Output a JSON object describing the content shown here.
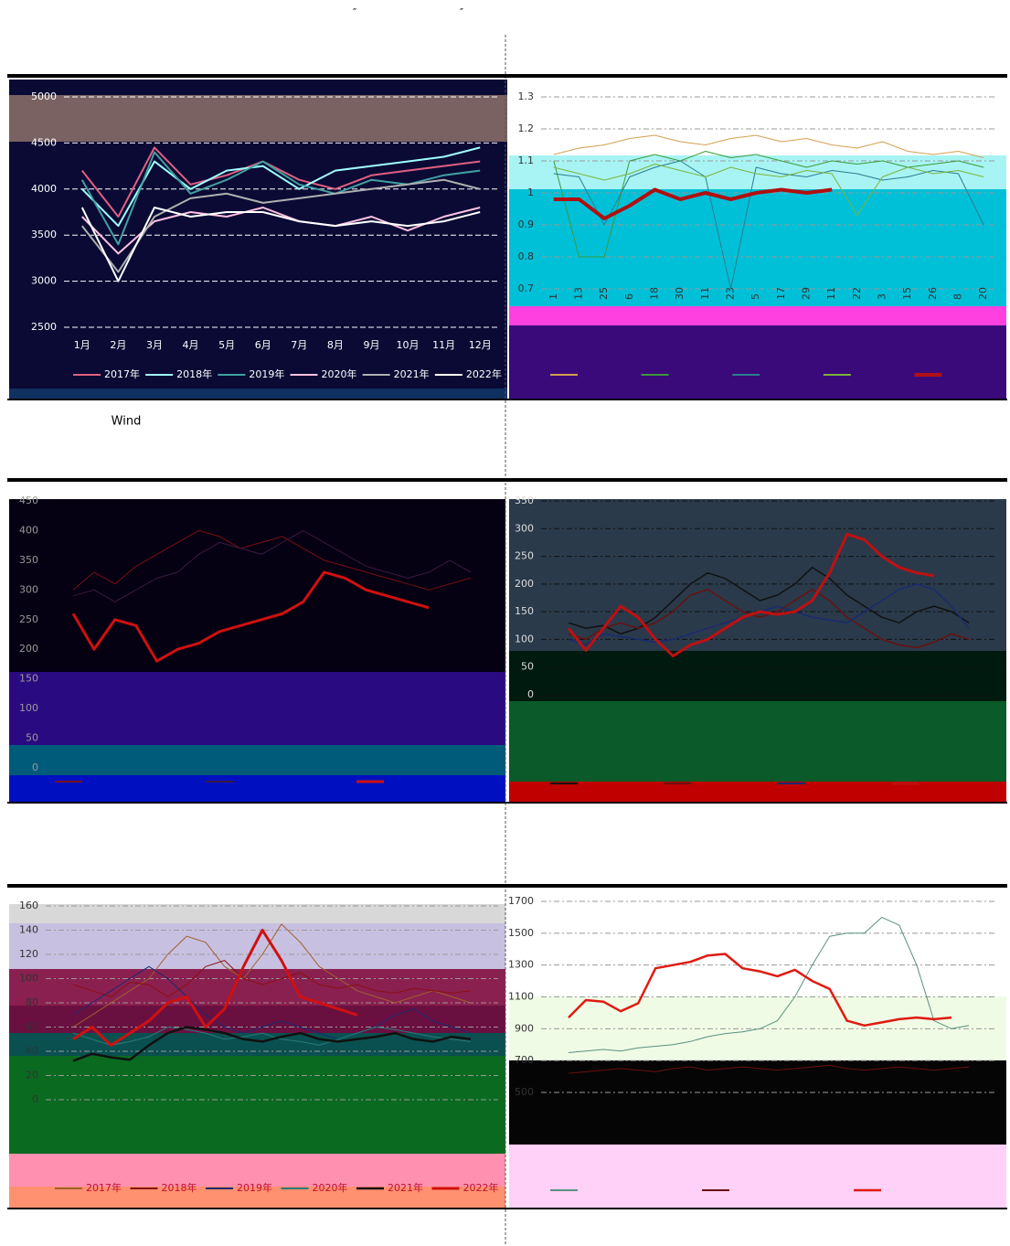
{
  "header": [
    "″",
    "″"
  ],
  "caption": "Wind",
  "chart_data": [
    {
      "type": "line",
      "ylim": [
        2500,
        5000
      ],
      "yticks": [
        2500,
        3000,
        3500,
        4000,
        4500,
        5000
      ],
      "grid": true,
      "legend": "bottom",
      "categories": [
        "1月",
        "2月",
        "3月",
        "4月",
        "5月",
        "6月",
        "7月",
        "8月",
        "9月",
        "10月",
        "11月",
        "12月"
      ],
      "series": [
        {
          "name": "2017年",
          "color": "#e06080",
          "line_width": 2,
          "values": [
            4200,
            3700,
            4450,
            4050,
            4150,
            4300,
            4100,
            4000,
            4150,
            4200,
            4250,
            4300
          ]
        },
        {
          "name": "2018年",
          "color": "#a0ffff",
          "line_width": 2,
          "values": [
            4000,
            3600,
            4300,
            4000,
            4200,
            4250,
            4000,
            4200,
            4250,
            4300,
            4350,
            4450
          ]
        },
        {
          "name": "2019年",
          "color": "#40a0a0",
          "line_width": 2,
          "values": [
            4100,
            3400,
            4400,
            3950,
            4100,
            4300,
            4050,
            3950,
            4100,
            4050,
            4150,
            4200
          ]
        },
        {
          "name": "2020年",
          "color": "#ffc0e0",
          "line_width": 2,
          "values": [
            3700,
            3300,
            3650,
            3750,
            3700,
            3800,
            3650,
            3600,
            3700,
            3550,
            3700,
            3800
          ]
        },
        {
          "name": "2021年",
          "color": "#b0b0b0",
          "line_width": 2,
          "values": [
            3600,
            3100,
            3700,
            3900,
            3950,
            3850,
            3900,
            3950,
            4000,
            4050,
            4100,
            4000
          ]
        },
        {
          "name": "2022年",
          "color": "#ffffff",
          "line_width": 2,
          "values": [
            3800,
            3000,
            3800,
            3700,
            3750,
            3750,
            3650,
            3600,
            3650,
            3600,
            3650,
            3750
          ]
        }
      ]
    },
    {
      "type": "line",
      "ylim": [
        0.7,
        1.3
      ],
      "yticks": [
        0.7,
        0.8,
        0.9,
        1,
        1.1,
        1.2,
        1.3
      ],
      "grid": true,
      "legend": "bottom",
      "categories": [
        "1",
        "13",
        "25",
        "6",
        "18",
        "30",
        "11",
        "23",
        "5",
        "17",
        "29",
        "11",
        "22",
        "3",
        "15",
        "26",
        "8",
        "20"
      ],
      "series": [
        {
          "color": "#d4a050",
          "line_width": 1,
          "values": [
            1.12,
            1.14,
            1.15,
            1.17,
            1.18,
            1.16,
            1.15,
            1.17,
            1.18,
            1.16,
            1.17,
            1.15,
            1.14,
            1.16,
            1.13,
            1.12,
            1.13,
            1.11
          ]
        },
        {
          "color": "#3a9a3a",
          "line_width": 1,
          "values": [
            1.1,
            0.8,
            0.8,
            1.1,
            1.12,
            1.1,
            1.13,
            1.11,
            1.12,
            1.1,
            1.08,
            1.1,
            1.09,
            1.1,
            1.08,
            1.09,
            1.1,
            1.08
          ]
        },
        {
          "color": "#2a7d8f",
          "line_width": 1,
          "values": [
            1.06,
            1.05,
            0.9,
            1.05,
            1.08,
            1.1,
            1.05,
            0.7,
            1.08,
            1.06,
            1.05,
            1.07,
            1.06,
            1.04,
            1.05,
            1.07,
            1.06,
            0.9
          ]
        },
        {
          "color": "#7bb33a",
          "line_width": 1,
          "values": [
            1.08,
            1.06,
            1.04,
            1.06,
            1.09,
            1.07,
            1.05,
            1.08,
            1.06,
            1.05,
            1.07,
            1.06,
            0.93,
            1.05,
            1.08,
            1.06,
            1.07,
            1.05
          ]
        },
        {
          "color": "#b01010",
          "line_width": 4,
          "values": [
            0.98,
            0.98,
            0.92,
            0.96,
            1.01,
            0.98,
            1,
            0.98,
            1,
            1.01,
            1,
            1.01,
            null,
            null,
            null,
            null,
            null,
            null
          ]
        }
      ]
    },
    {
      "type": "line",
      "ylim": [
        0,
        450
      ],
      "yticks": [
        0,
        50,
        100,
        150,
        200,
        250,
        300,
        350,
        400,
        450
      ],
      "grid": false,
      "legend": "bottom",
      "series": [
        {
          "color": "#7a1010",
          "line_width": 1,
          "values": [
            300,
            330,
            310,
            340,
            360,
            380,
            400,
            390,
            370,
            380,
            390,
            370,
            350,
            340,
            330,
            320,
            310,
            300,
            310,
            320
          ]
        },
        {
          "color": "#3a1a40",
          "line_width": 1,
          "values": [
            290,
            300,
            280,
            300,
            320,
            330,
            360,
            380,
            370,
            360,
            380,
            400,
            380,
            360,
            340,
            330,
            320,
            330,
            350,
            330
          ]
        },
        {
          "color": "#d01010",
          "line_width": 3,
          "values": [
            260,
            200,
            250,
            240,
            180,
            200,
            210,
            230,
            240,
            250,
            260,
            280,
            330,
            320,
            300,
            290,
            280,
            270,
            null,
            null
          ]
        }
      ]
    },
    {
      "type": "line",
      "ylim": [
        0,
        350
      ],
      "yticks": [
        0,
        50,
        100,
        150,
        200,
        250,
        300,
        350
      ],
      "grid": true,
      "legend": "bottom",
      "series": [
        {
          "color": "#111111",
          "line_width": 1.5,
          "values": [
            130,
            120,
            125,
            110,
            120,
            140,
            170,
            200,
            220,
            210,
            190,
            170,
            180,
            200,
            230,
            210,
            180,
            160,
            140,
            130,
            150,
            160,
            150,
            130
          ]
        },
        {
          "color": "#6a1010",
          "line_width": 1.5,
          "values": [
            110,
            100,
            120,
            130,
            120,
            130,
            150,
            180,
            190,
            170,
            150,
            140,
            150,
            170,
            190,
            170,
            140,
            120,
            100,
            90,
            85,
            95,
            110,
            100
          ]
        },
        {
          "color": "#1a2a70",
          "line_width": 1.5,
          "values": [
            100,
            90,
            110,
            105,
            100,
            95,
            100,
            110,
            120,
            130,
            140,
            150,
            160,
            150,
            140,
            135,
            130,
            150,
            170,
            190,
            200,
            190,
            160,
            120
          ]
        },
        {
          "color": "#c01010",
          "line_width": 3,
          "values": [
            120,
            80,
            120,
            160,
            140,
            100,
            70,
            90,
            100,
            120,
            140,
            150,
            145,
            150,
            170,
            220,
            290,
            280,
            250,
            230,
            220,
            215,
            null,
            null
          ]
        }
      ]
    },
    {
      "type": "line",
      "ylim": [
        0,
        160
      ],
      "yticks": [
        0,
        20,
        40,
        60,
        80,
        100,
        120,
        140,
        160
      ],
      "grid": true,
      "legend": "bottom",
      "series": [
        {
          "name": "2017年",
          "color": "#a0602d",
          "line_width": 1,
          "values": [
            60,
            70,
            80,
            90,
            100,
            120,
            135,
            130,
            110,
            100,
            120,
            145,
            130,
            110,
            100,
            90,
            85,
            80,
            85,
            90,
            85,
            80
          ]
        },
        {
          "name": "2018年",
          "color": "#8a1010",
          "line_width": 1,
          "values": [
            95,
            90,
            85,
            97,
            95,
            85,
            95,
            110,
            115,
            100,
            95,
            100,
            105,
            95,
            92,
            95,
            90,
            88,
            92,
            90,
            88,
            90
          ]
        },
        {
          "name": "2019年",
          "color": "#1a2a70",
          "line_width": 1,
          "values": [
            70,
            80,
            90,
            100,
            110,
            100,
            85,
            70,
            60,
            55,
            60,
            65,
            60,
            55,
            50,
            55,
            60,
            70,
            75,
            65,
            60,
            55
          ]
        },
        {
          "name": "2020年",
          "color": "#2a7a7a",
          "line_width": 1,
          "values": [
            55,
            50,
            45,
            48,
            52,
            60,
            58,
            55,
            50,
            52,
            55,
            50,
            48,
            45,
            50,
            55,
            60,
            58,
            55,
            52,
            50,
            48
          ]
        },
        {
          "name": "2021年",
          "color": "#111111",
          "line_width": 2.5,
          "values": [
            32,
            38,
            35,
            33,
            45,
            55,
            60,
            58,
            55,
            50,
            48,
            52,
            55,
            50,
            48,
            50,
            52,
            55,
            50,
            48,
            52,
            50
          ]
        },
        {
          "name": "2022年",
          "color": "#d01010",
          "line_width": 3,
          "values": [
            50,
            60,
            45,
            55,
            65,
            80,
            85,
            60,
            75,
            110,
            140,
            115,
            85,
            80,
            75,
            70,
            null,
            null,
            null,
            null,
            null,
            null
          ]
        }
      ]
    },
    {
      "type": "line",
      "ylim": [
        500,
        1700
      ],
      "yticks": [
        500,
        700,
        900,
        1100,
        1300,
        1500,
        1700
      ],
      "grid": true,
      "legend": "bottom",
      "series": [
        {
          "color": "#5a9080",
          "line_width": 1,
          "values": [
            750,
            760,
            770,
            760,
            780,
            790,
            800,
            820,
            850,
            870,
            880,
            900,
            950,
            1100,
            1300,
            1480,
            1500,
            1500,
            1600,
            1550,
            1300,
            950,
            900,
            920
          ]
        },
        {
          "color": "#6a1010",
          "line_width": 1,
          "values": [
            620,
            630,
            640,
            650,
            640,
            630,
            650,
            660,
            640,
            650,
            660,
            650,
            640,
            650,
            660,
            670,
            650,
            640,
            650,
            660,
            650,
            640,
            650,
            660
          ]
        },
        {
          "color": "#e01a10",
          "line_width": 2.5,
          "values": [
            970,
            1080,
            1070,
            1010,
            1060,
            1280,
            1300,
            1320,
            1360,
            1370,
            1280,
            1260,
            1230,
            1270,
            1200,
            1150,
            950,
            920,
            940,
            960,
            970,
            960,
            970,
            null
          ]
        }
      ]
    }
  ]
}
